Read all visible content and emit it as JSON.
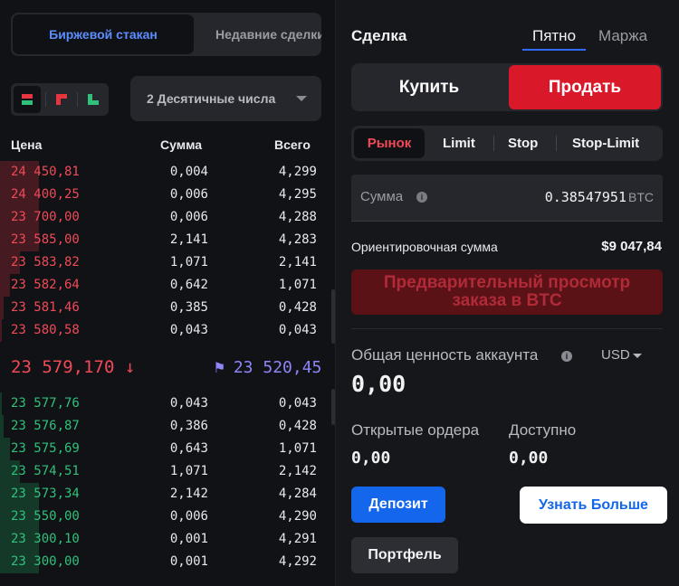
{
  "orderbook": {
    "tabs": {
      "active": "Биржевой стакан",
      "inactive": "Недавние сделки"
    },
    "view_icons": [
      "orderbook-both-icon",
      "orderbook-asks-icon",
      "orderbook-bids-icon"
    ],
    "decimals": "2 Десятичные числа",
    "headers": {
      "price": "Цена",
      "amount": "Сумма",
      "total": "Всего"
    },
    "asks": [
      {
        "price": "24 450,81",
        "amount": "0,004",
        "total": "4,299",
        "depth": 0.12
      },
      {
        "price": "24 400,25",
        "amount": "0,006",
        "total": "4,295",
        "depth": 0.12
      },
      {
        "price": "23 700,00",
        "amount": "0,006",
        "total": "4,288",
        "depth": 0.12
      },
      {
        "price": "23 585,00",
        "amount": "2,141",
        "total": "4,283",
        "depth": 0.12
      },
      {
        "price": "23 583,82",
        "amount": "1,071",
        "total": "2,141",
        "depth": 0.06
      },
      {
        "price": "23 582,64",
        "amount": "0,642",
        "total": "1,071",
        "depth": 0.03
      },
      {
        "price": "23 581,46",
        "amount": "0,385",
        "total": "0,428",
        "depth": 0.012
      },
      {
        "price": "23 580,58",
        "amount": "0,043",
        "total": "0,043",
        "depth": 0.002
      }
    ],
    "last_price": "23 579,170",
    "last_direction_icon": "arrow-down-icon",
    "mark_price": "23 520,45",
    "mark_icon": "flag-icon",
    "bids": [
      {
        "price": "23 577,76",
        "amount": "0,043",
        "total": "0,043",
        "depth": 0.002
      },
      {
        "price": "23 576,87",
        "amount": "0,386",
        "total": "0,428",
        "depth": 0.012
      },
      {
        "price": "23 575,69",
        "amount": "0,643",
        "total": "1,071",
        "depth": 0.03
      },
      {
        "price": "23 574,51",
        "amount": "1,071",
        "total": "2,142",
        "depth": 0.06
      },
      {
        "price": "23 573,34",
        "amount": "2,142",
        "total": "4,284",
        "depth": 0.12
      },
      {
        "price": "23 550,00",
        "amount": "0,006",
        "total": "4,290",
        "depth": 0.12
      },
      {
        "price": "23 300,10",
        "amount": "0,001",
        "total": "4,291",
        "depth": 0.12
      },
      {
        "price": "23 300,00",
        "amount": "0,001",
        "total": "4,292",
        "depth": 0.12
      }
    ]
  },
  "trade": {
    "title": "Сделка",
    "market_tabs": {
      "spot": "Пятно",
      "margin": "Маржа"
    },
    "buy": "Купить",
    "sell": "Продать",
    "order_types": [
      "Рынок",
      "Limit",
      "Stop",
      "Stop-Limit"
    ],
    "amount_label": "Сумма",
    "amount_value": "0.38547951",
    "amount_currency": "BTC",
    "estimated_label": "Ориентировочная сумма",
    "estimated_value": "$9 047,84",
    "preview_line1": "Предварительный просмотр",
    "preview_line2": "заказа в BTC",
    "account_label": "Общая ценность аккаунта",
    "account_currency": "USD",
    "account_value": "0,00",
    "open_orders_label": "Открытые ордера",
    "open_orders_value": "0,00",
    "available_label": "Доступно",
    "available_value": "0,00",
    "deposit": "Депозит",
    "learn_more": "Узнать Больше",
    "portfolio": "Портфель"
  },
  "colors": {
    "ask": "#f04a57",
    "bid": "#2fc07a",
    "sell_button": "#d9182a",
    "accent_blue": "#1467ec",
    "mark": "#8d86f7"
  }
}
